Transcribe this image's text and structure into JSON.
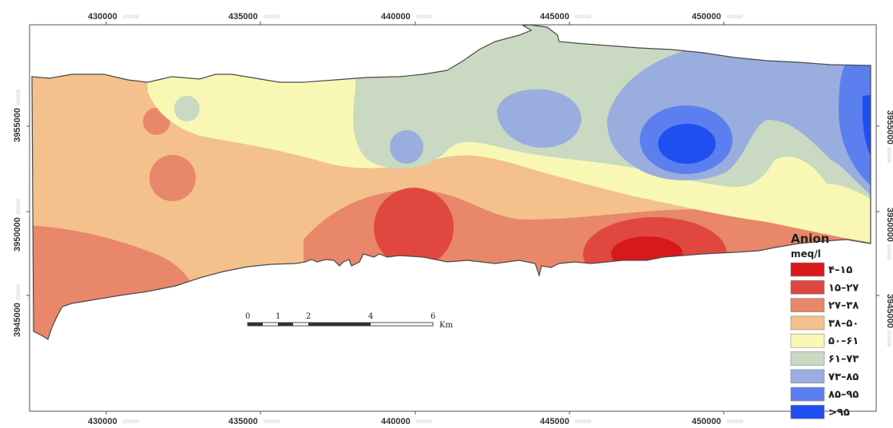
{
  "map": {
    "x_ticks": [
      {
        "main": "430000",
        "sub": "000000"
      },
      {
        "main": "435000",
        "sub": "000000"
      },
      {
        "main": "440000",
        "sub": "000000"
      },
      {
        "main": "445000",
        "sub": "000000"
      },
      {
        "main": "450000",
        "sub": "000000"
      }
    ],
    "y_ticks": [
      {
        "main": "3955000",
        "sub": "000000"
      },
      {
        "main": "3950000",
        "sub": "000000"
      },
      {
        "main": "3945000",
        "sub": "000000"
      }
    ],
    "legend": {
      "title": "Anion",
      "unit": "meq/l",
      "classes": [
        {
          "label": "۴–۱۵",
          "color": "#d7191c"
        },
        {
          "label": "۱۵–۲۷",
          "color": "#e0483f"
        },
        {
          "label": "۲۷–۳۸",
          "color": "#e8876a"
        },
        {
          "label": "۳۸–۵۰",
          "color": "#f4c08c"
        },
        {
          "label": "۵۰–۶۱",
          "color": "#f8f8b4"
        },
        {
          "label": "۶۱–۷۳",
          "color": "#c9d9c2"
        },
        {
          "label": "۷۳–۸۵",
          "color": "#99addf"
        },
        {
          "label": "۸۵–۹۵",
          "color": "#5c7ff0"
        },
        {
          "label": ">۹۵",
          "color": "#1f4ff0"
        }
      ]
    },
    "scale_bar": {
      "labels": [
        "0",
        "1",
        "2",
        "4",
        "6"
      ],
      "unit": "Km"
    }
  }
}
